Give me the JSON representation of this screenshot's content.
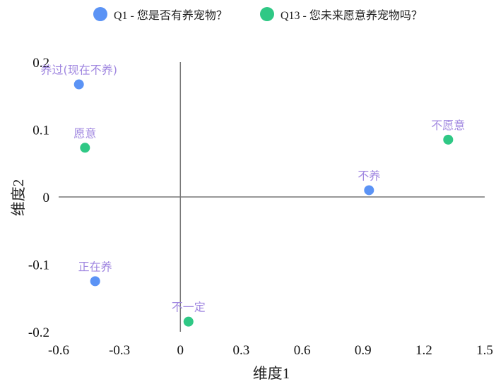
{
  "colors": {
    "q1": "#5b93f5",
    "q13": "#2fc885",
    "label": "#a087e0",
    "axis": "#777777"
  },
  "legend": [
    {
      "key": "q1",
      "label": "Q1 - 您是否有养宠物？",
      "color": "#5b93f5"
    },
    {
      "key": "q13",
      "label": "Q13 - 您未来愿意养宠物吗？",
      "color": "#2fc885"
    }
  ],
  "chart_data": {
    "type": "scatter",
    "xlabel": "维度1",
    "ylabel": "维度2",
    "xlim": [
      -0.6,
      1.5
    ],
    "ylim": [
      -0.2,
      0.2
    ],
    "xticks": [
      "-0.6",
      "-0.3",
      "0",
      "0.3",
      "0.6",
      "0.9",
      "1.2",
      "1.5"
    ],
    "yticks": [
      "0.2",
      "0.1",
      "0",
      "-0.1",
      "-0.2"
    ],
    "series": [
      {
        "name": "Q1 - 您是否有养宠物？",
        "color": "#5b93f5",
        "points": [
          {
            "label": "养过(现在不养)",
            "x": -0.5,
            "y": 0.167
          },
          {
            "label": "不养",
            "x": 0.93,
            "y": 0.01
          },
          {
            "label": "正在养",
            "x": -0.42,
            "y": -0.125
          }
        ]
      },
      {
        "name": "Q13 - 您未来愿意养宠物吗？",
        "color": "#2fc885",
        "points": [
          {
            "label": "愿意",
            "x": -0.47,
            "y": 0.073
          },
          {
            "label": "不愿意",
            "x": 1.32,
            "y": 0.085
          },
          {
            "label": "不一定",
            "x": 0.04,
            "y": -0.185
          }
        ]
      }
    ]
  }
}
